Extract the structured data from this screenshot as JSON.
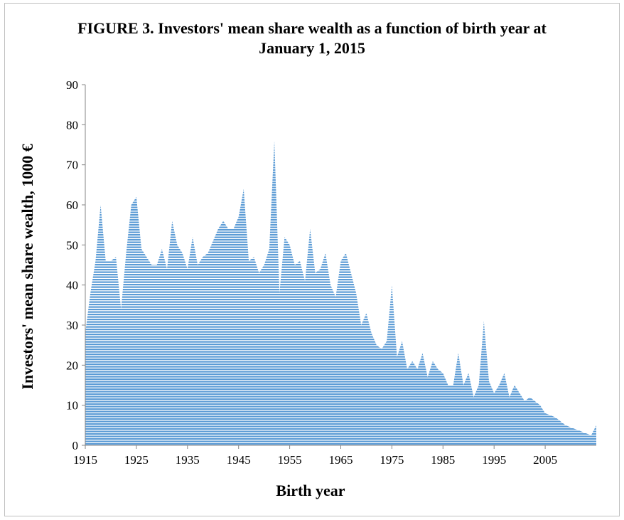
{
  "chart_data": {
    "type": "area",
    "title": "FIGURE 3. Investors' mean share wealth as a function of birth year at January 1, 2015",
    "x_label": "Birth year",
    "y_label": "Investors' mean share wealth, 1000 €",
    "x": [
      1915,
      1916,
      1917,
      1918,
      1919,
      1920,
      1921,
      1922,
      1923,
      1924,
      1925,
      1926,
      1927,
      1928,
      1929,
      1930,
      1931,
      1932,
      1933,
      1934,
      1935,
      1936,
      1937,
      1938,
      1939,
      1940,
      1941,
      1942,
      1943,
      1944,
      1945,
      1946,
      1947,
      1948,
      1949,
      1950,
      1951,
      1952,
      1953,
      1954,
      1955,
      1956,
      1957,
      1958,
      1959,
      1960,
      1961,
      1962,
      1963,
      1964,
      1965,
      1966,
      1967,
      1968,
      1969,
      1970,
      1971,
      1972,
      1973,
      1974,
      1975,
      1976,
      1977,
      1978,
      1979,
      1980,
      1981,
      1982,
      1983,
      1984,
      1985,
      1986,
      1987,
      1988,
      1989,
      1990,
      1991,
      1992,
      1993,
      1994,
      1995,
      1996,
      1997,
      1998,
      1999,
      2000,
      2001,
      2002,
      2003,
      2004,
      2005,
      2006,
      2007,
      2008,
      2009,
      2010,
      2011,
      2012,
      2013,
      2014,
      2015
    ],
    "series": [
      {
        "name": "Mean share wealth",
        "color": "#5b9bd5",
        "values": [
          28,
          38,
          46,
          60,
          46,
          46,
          47,
          34,
          48,
          60,
          62,
          49,
          47,
          45,
          45,
          49,
          44,
          56,
          50,
          48,
          44,
          52,
          45,
          47,
          48,
          51,
          54,
          56,
          54,
          54,
          57,
          64,
          46,
          47,
          43,
          45,
          49,
          76,
          38,
          52,
          50,
          45,
          46,
          41,
          54,
          43,
          44,
          48,
          40,
          37,
          46,
          48,
          43,
          38,
          30,
          33,
          28,
          25,
          24,
          26,
          40,
          22,
          26,
          19,
          21,
          19,
          23,
          17,
          21,
          19,
          18,
          15,
          15,
          23,
          15,
          18,
          12,
          15,
          31,
          16,
          13,
          15,
          18,
          12,
          15,
          13,
          11,
          12,
          11,
          10,
          8,
          7.5,
          7,
          6,
          5,
          4.5,
          4,
          3.5,
          3,
          2.5,
          5
        ]
      }
    ],
    "xlim": [
      1915,
      2015
    ],
    "xticks": [
      1915,
      1925,
      1935,
      1945,
      1955,
      1965,
      1975,
      1985,
      1995,
      2005
    ],
    "ylim": [
      0,
      90
    ],
    "yticks": [
      0,
      10,
      20,
      30,
      40,
      50,
      60,
      70,
      80,
      90
    ],
    "grid": false
  }
}
